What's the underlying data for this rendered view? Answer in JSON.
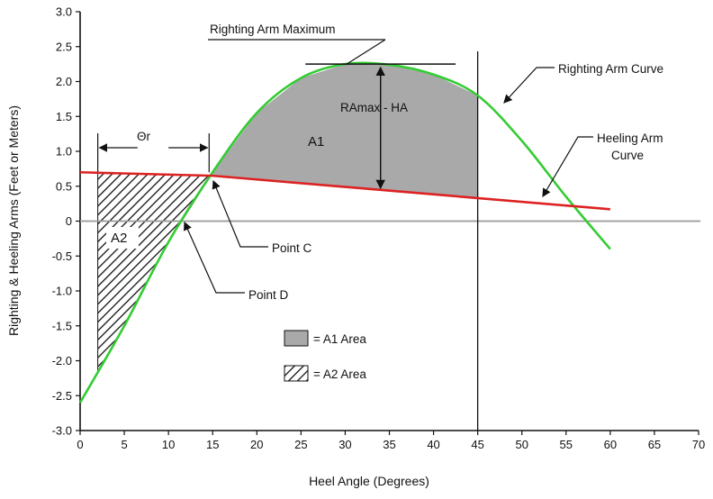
{
  "chart_data": {
    "type": "line",
    "xlabel": "Heel Angle (Degrees)",
    "ylabel": "Righting & Heeling Arms (Feet or Meters)",
    "xlim": [
      0,
      70
    ],
    "ylim": [
      -3.0,
      3.0
    ],
    "x_ticks": [
      "0",
      "5",
      "10",
      "15",
      "20",
      "25",
      "30",
      "35",
      "40",
      "45",
      "50",
      "55",
      "60",
      "65",
      "70"
    ],
    "y_ticks": [
      "3.0",
      "2.5",
      "2.0",
      "1.5",
      "1.0",
      "0.5",
      "0",
      "-0.5",
      "-1.0",
      "-1.5",
      "-2.0",
      "-2.5",
      "-3.0"
    ],
    "grid": false,
    "series": [
      {
        "name": "Righting Arm Curve",
        "color": "#33cc33",
        "x": [
          0,
          5,
          10,
          15,
          20,
          25,
          30,
          35,
          40,
          45,
          50,
          55,
          60
        ],
        "y": [
          -2.6,
          -1.5,
          -0.3,
          0.7,
          1.55,
          2.05,
          2.25,
          2.24,
          2.1,
          1.8,
          1.15,
          0.35,
          -0.4
        ]
      },
      {
        "name": "Heeling Arm Curve",
        "color": "#dd2222",
        "x": [
          0,
          15,
          60
        ],
        "y": [
          0.7,
          0.65,
          0.17
        ]
      }
    ],
    "areas": [
      {
        "name": "A1",
        "fill": "#a9a9a9",
        "x_range": [
          14.6,
          45
        ]
      },
      {
        "name": "A2",
        "pattern": "diagonal-hatch",
        "x_range": [
          2,
          14.6
        ]
      }
    ],
    "reference_lines": {
      "vertical_x": 45
    },
    "annotations": {
      "righting_arm_maximum": "Righting Arm Maximum",
      "ramax_ha": "RAmax - HA",
      "a1": "A1",
      "a2": "A2",
      "theta_r": "Θr",
      "point_c": "Point C",
      "point_d": "Point D",
      "righting_arm_curve": "Righting Arm Curve",
      "heeling_arm_curve_1": "Heeling Arm",
      "heeling_arm_curve_2": "Curve"
    },
    "legend": [
      {
        "label": "= A1 Area",
        "fill": "#a9a9a9"
      },
      {
        "label": "= A2 Area",
        "pattern": "diagonal-hatch"
      }
    ]
  }
}
